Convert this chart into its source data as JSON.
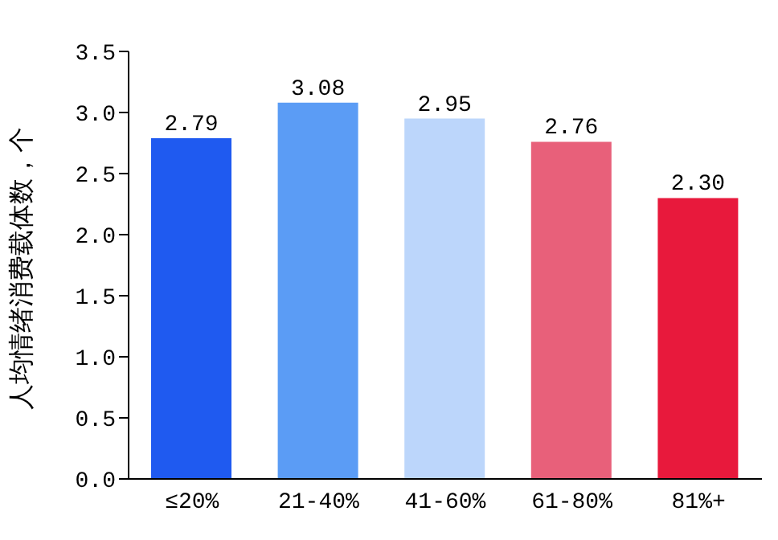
{
  "chart_data": {
    "type": "bar",
    "ylabel": "人均情绪消费载体数，个",
    "categories": [
      "≤20%",
      "21-40%",
      "41-60%",
      "61-80%",
      "81%+"
    ],
    "values": [
      2.79,
      3.08,
      2.95,
      2.76,
      2.3
    ],
    "value_labels": [
      "2.79",
      "3.08",
      "2.95",
      "2.76",
      "2.30"
    ],
    "colors": [
      "#1f5af0",
      "#5b9cf5",
      "#bcd6fb",
      "#e8607a",
      "#e8193c"
    ],
    "ylim": [
      0,
      3.5
    ],
    "yticks": [
      {
        "value": 0,
        "label": "0.0"
      },
      {
        "value": 0.5,
        "label": "0.5"
      },
      {
        "value": 1,
        "label": "1.0"
      },
      {
        "value": 1.5,
        "label": "1.5"
      },
      {
        "value": 2,
        "label": "2.0"
      },
      {
        "value": 2.5,
        "label": "2.5"
      },
      {
        "value": 3,
        "label": "3.0"
      },
      {
        "value": 3.5,
        "label": "3.5"
      }
    ],
    "grid": false
  }
}
